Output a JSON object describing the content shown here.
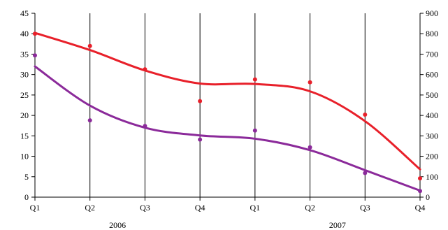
{
  "chart_data": {
    "type": "scatter",
    "title": "",
    "xlabel": "",
    "ylabel": "",
    "grid": {
      "vertical": true,
      "horizontal": false
    },
    "categories": [
      "Q1",
      "Q2",
      "Q3",
      "Q4",
      "Q1",
      "Q2",
      "Q3",
      "Q4"
    ],
    "groups": [
      {
        "label": "2006",
        "start_index": 0,
        "end_index": 3
      },
      {
        "label": "2007",
        "start_index": 4,
        "end_index": 7
      }
    ],
    "y_left": {
      "range": [
        0,
        45
      ],
      "ticks": [
        0,
        5,
        10,
        15,
        20,
        25,
        30,
        35,
        40,
        45
      ]
    },
    "y_right": {
      "range": [
        0,
        900
      ],
      "ticks": [
        0,
        100,
        200,
        300,
        400,
        500,
        600,
        700,
        800,
        900
      ]
    },
    "series": [
      {
        "color": "#e8202a",
        "axis": "left",
        "points": [
          40.0,
          37.0,
          31.3,
          23.5,
          28.8,
          28.1,
          20.2,
          4.6
        ],
        "trend": [
          40.2,
          36.0,
          31.0,
          27.8,
          27.7,
          25.9,
          18.6,
          6.8
        ]
      },
      {
        "color": "#8b2a9a",
        "axis": "left",
        "points": [
          34.7,
          18.8,
          17.4,
          14.1,
          16.3,
          12.2,
          5.9,
          1.5
        ],
        "trend": [
          32.0,
          22.4,
          17.0,
          15.1,
          14.3,
          11.5,
          6.6,
          1.6
        ]
      }
    ]
  }
}
